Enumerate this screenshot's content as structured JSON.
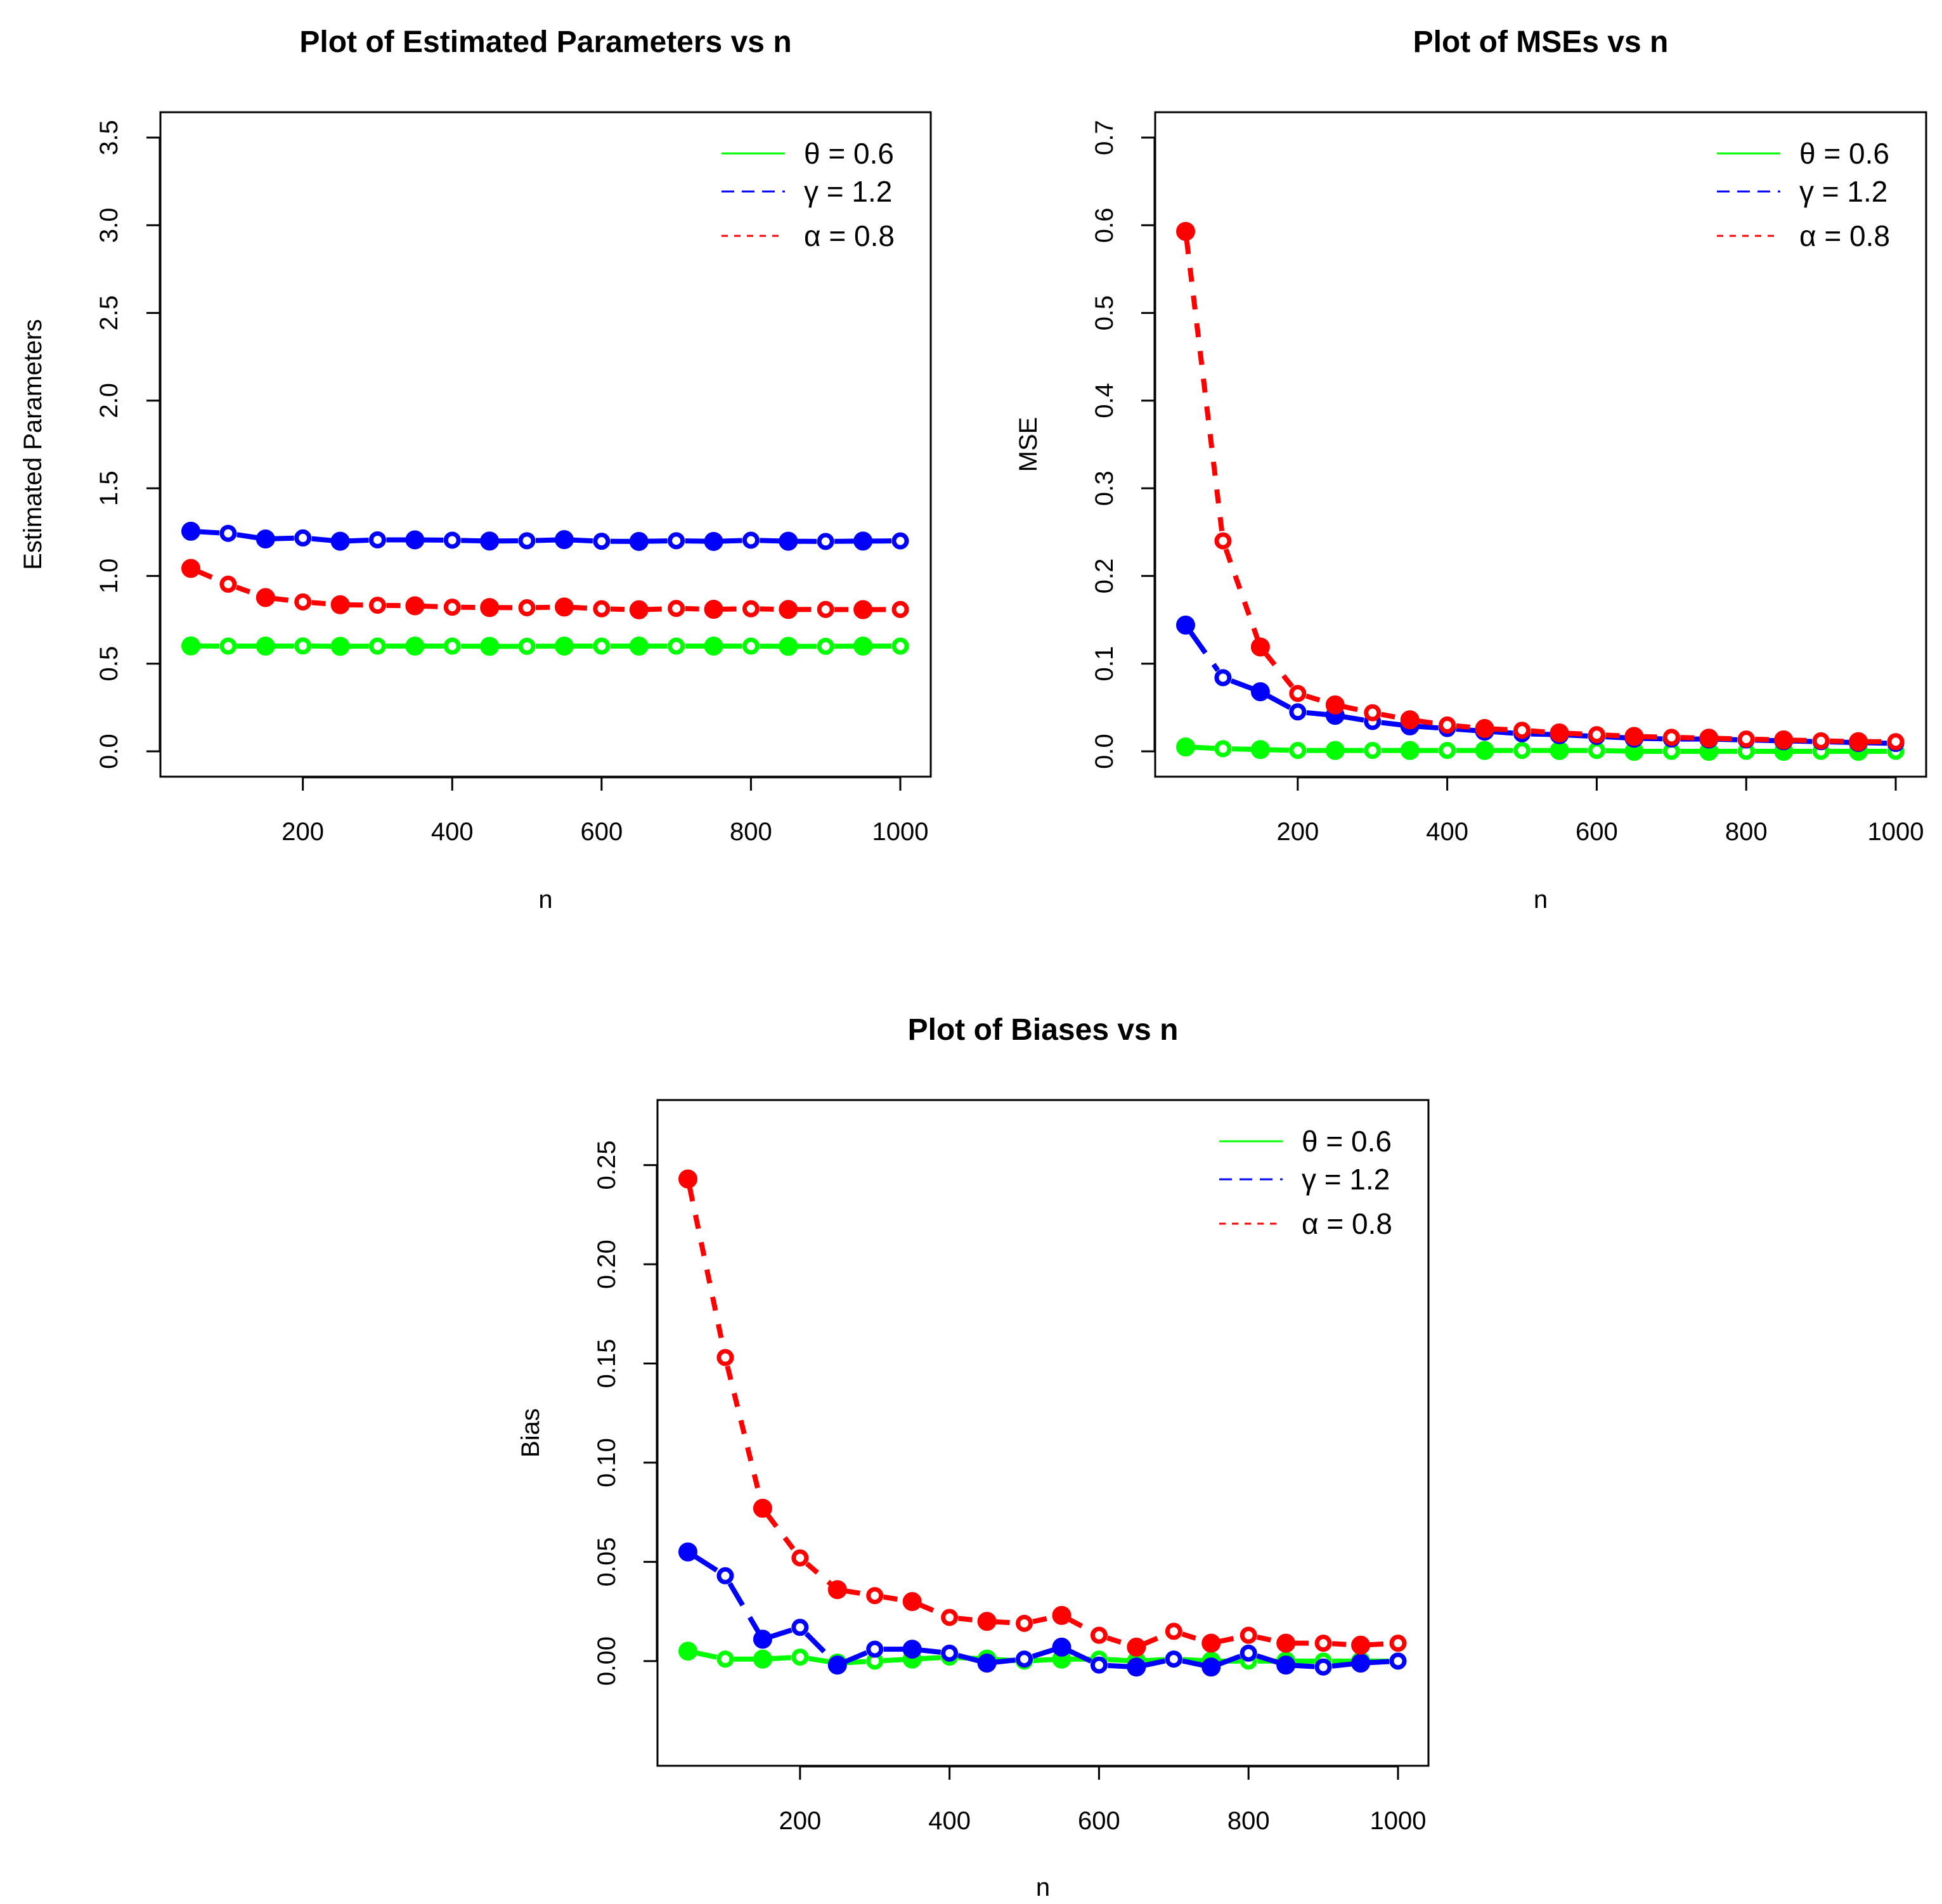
{
  "chart_data": [
    {
      "id": "params",
      "type": "line",
      "title": "Plot of Estimated Parameters vs n",
      "xlabel": "n",
      "ylabel": "Estimated Parameters",
      "xlim": [
        50,
        1000
      ],
      "ylim": [
        0,
        3.5
      ],
      "xticks": [
        200,
        400,
        600,
        800,
        1000
      ],
      "yticks": [
        0.0,
        0.5,
        1.0,
        1.5,
        2.0,
        2.5,
        3.0,
        3.5
      ],
      "ytick_labels": [
        "0.0",
        "0.5",
        "1.0",
        "1.5",
        "2.0",
        "2.5",
        "3.0",
        "3.5"
      ],
      "legend_position": "top-right",
      "x": [
        50,
        100,
        150,
        200,
        250,
        300,
        350,
        400,
        450,
        500,
        550,
        600,
        650,
        700,
        750,
        800,
        850,
        900,
        950,
        1000
      ],
      "series": [
        {
          "name": "θ = 0.6",
          "color": "#00ff00",
          "dash": "solid",
          "values": [
            0.601,
            0.6,
            0.6,
            0.601,
            0.599,
            0.6,
            0.6,
            0.6,
            0.599,
            0.599,
            0.6,
            0.6,
            0.6,
            0.6,
            0.6,
            0.6,
            0.599,
            0.599,
            0.6,
            0.6
          ]
        },
        {
          "name": "γ = 1.2",
          "color": "#0000ff",
          "dash": "long",
          "values": [
            1.255,
            1.243,
            1.211,
            1.217,
            1.198,
            1.206,
            1.206,
            1.204,
            1.199,
            1.201,
            1.207,
            1.198,
            1.197,
            1.201,
            1.197,
            1.204,
            1.198,
            1.197,
            1.199,
            1.2
          ]
        },
        {
          "name": "α = 0.8",
          "color": "#ff0000",
          "dash": "short",
          "values": [
            1.043,
            0.953,
            0.877,
            0.852,
            0.836,
            0.833,
            0.83,
            0.822,
            0.82,
            0.819,
            0.823,
            0.813,
            0.807,
            0.815,
            0.81,
            0.813,
            0.809,
            0.809,
            0.808,
            0.809
          ]
        }
      ]
    },
    {
      "id": "mse",
      "type": "line",
      "title": "Plot of MSEs vs n",
      "xlabel": "n",
      "ylabel": "MSE",
      "xlim": [
        50,
        1000
      ],
      "ylim": [
        0,
        0.7
      ],
      "xticks": [
        200,
        400,
        600,
        800,
        1000
      ],
      "yticks": [
        0.0,
        0.1,
        0.2,
        0.3,
        0.4,
        0.5,
        0.6,
        0.7
      ],
      "ytick_labels": [
        "0.0",
        "0.1",
        "0.2",
        "0.3",
        "0.4",
        "0.5",
        "0.6",
        "0.7"
      ],
      "legend_position": "top-right",
      "x": [
        50,
        100,
        150,
        200,
        250,
        300,
        350,
        400,
        450,
        500,
        550,
        600,
        650,
        700,
        750,
        800,
        850,
        900,
        950,
        1000
      ],
      "series": [
        {
          "name": "θ = 0.6",
          "color": "#00ff00",
          "dash": "solid",
          "values": [
            0.005,
            0.003,
            0.002,
            0.001,
            0.001,
            0.001,
            0.001,
            0.001,
            0.001,
            0.001,
            0.001,
            0.001,
            0.0,
            0.0,
            0.0,
            0.0,
            0.0,
            0.0,
            0.0,
            0.0
          ]
        },
        {
          "name": "γ = 1.2",
          "color": "#0000ff",
          "dash": "long",
          "values": [
            0.144,
            0.084,
            0.068,
            0.045,
            0.041,
            0.034,
            0.029,
            0.026,
            0.023,
            0.02,
            0.019,
            0.017,
            0.015,
            0.014,
            0.014,
            0.013,
            0.012,
            0.011,
            0.01,
            0.009
          ]
        },
        {
          "name": "α = 0.8",
          "color": "#ff0000",
          "dash": "short",
          "values": [
            0.593,
            0.24,
            0.119,
            0.066,
            0.053,
            0.044,
            0.036,
            0.03,
            0.026,
            0.024,
            0.021,
            0.019,
            0.017,
            0.016,
            0.015,
            0.014,
            0.013,
            0.012,
            0.011,
            0.011
          ]
        }
      ]
    },
    {
      "id": "bias",
      "type": "line",
      "title": "Plot of Biases vs n",
      "xlabel": "n",
      "ylabel": "Bias",
      "xlim": [
        50,
        1000
      ],
      "ylim": [
        -0.04,
        0.27
      ],
      "xticks": [
        200,
        400,
        600,
        800,
        1000
      ],
      "yticks": [
        0.0,
        0.05,
        0.1,
        0.15,
        0.2,
        0.25
      ],
      "ytick_labels": [
        "0.00",
        "0.05",
        "0.10",
        "0.15",
        "0.20",
        "0.25"
      ],
      "legend_position": "top-right",
      "x": [
        50,
        100,
        150,
        200,
        250,
        300,
        350,
        400,
        450,
        500,
        550,
        600,
        650,
        700,
        750,
        800,
        850,
        900,
        950,
        1000
      ],
      "series": [
        {
          "name": "θ = 0.6",
          "color": "#00ff00",
          "dash": "solid",
          "values": [
            0.005,
            0.001,
            0.001,
            0.002,
            -0.001,
            0.0,
            0.001,
            0.002,
            0.001,
            0.0,
            0.001,
            0.001,
            0.0,
            0.001,
            0.0,
            0.0,
            0.0,
            0.0,
            0.0,
            0.0
          ]
        },
        {
          "name": "γ = 1.2",
          "color": "#0000ff",
          "dash": "long",
          "values": [
            0.055,
            0.043,
            0.011,
            0.017,
            -0.002,
            0.006,
            0.006,
            0.004,
            -0.001,
            0.001,
            0.007,
            -0.002,
            -0.003,
            0.001,
            -0.003,
            0.004,
            -0.002,
            -0.003,
            -0.001,
            0.0
          ]
        },
        {
          "name": "α = 0.8",
          "color": "#ff0000",
          "dash": "short",
          "values": [
            0.243,
            0.153,
            0.077,
            0.052,
            0.036,
            0.033,
            0.03,
            0.022,
            0.02,
            0.019,
            0.023,
            0.013,
            0.007,
            0.015,
            0.009,
            0.013,
            0.009,
            0.009,
            0.008,
            0.009
          ]
        }
      ]
    }
  ]
}
